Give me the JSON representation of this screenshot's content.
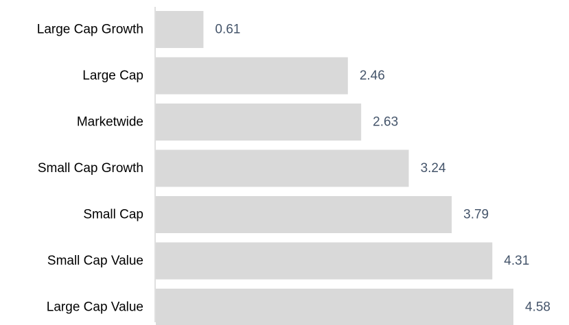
{
  "chart_data": {
    "type": "bar",
    "orientation": "horizontal",
    "categories": [
      "Large Cap Growth",
      "Large Cap",
      "Marketwide",
      "Small Cap Growth",
      "Small Cap",
      "Small Cap Value",
      "Large Cap Value"
    ],
    "values": [
      0.61,
      2.46,
      2.63,
      3.24,
      3.79,
      4.31,
      4.58
    ],
    "value_labels": [
      "0.61",
      "2.46",
      "2.63",
      "3.24",
      "3.79",
      "4.31",
      "4.58"
    ],
    "title": "",
    "xlabel": "",
    "ylabel": "",
    "xlim": [
      0,
      4.58
    ],
    "grid": false,
    "legend": "none",
    "colors": {
      "bar": "#d9d9d9",
      "value_label": "#44546a",
      "axis": "#bfbfbf",
      "category_label": "#000000"
    }
  }
}
